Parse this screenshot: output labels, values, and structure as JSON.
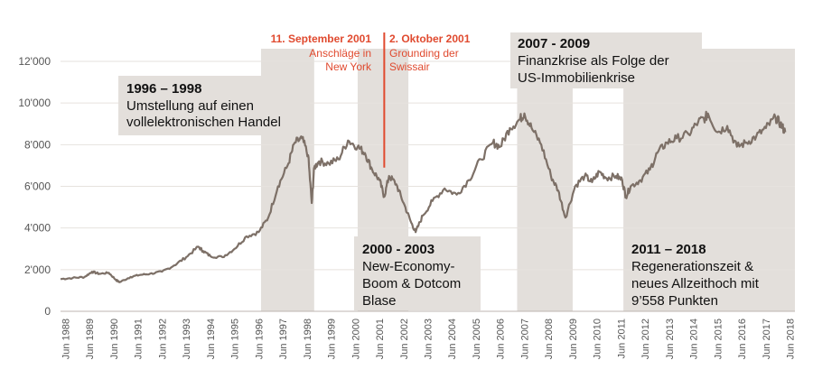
{
  "chart_data": {
    "type": "line",
    "y_tick_labels": [
      "0",
      "2'000",
      "4'000",
      "6'000",
      "8'000",
      "10'000",
      "12'000"
    ],
    "y_ticks": [
      0,
      2000,
      4000,
      6000,
      8000,
      10000,
      12000
    ],
    "ylim": [
      0,
      12000
    ],
    "x_tick_labels": [
      "Jun 1988",
      "Jun 1989",
      "Jun 1990",
      "Jun 1991",
      "Jun 1992",
      "Jun 1993",
      "Jun 1994",
      "Jun 1995",
      "Jun 1996",
      "Jun 1997",
      "Jun 1998",
      "Jun 1999",
      "Jun 2000",
      "Jun 2001",
      "Jun 2002",
      "Jun 2003",
      "Jun 2004",
      "Jun 2005",
      "Jun 2006",
      "Jun 2007",
      "Jun 2008",
      "Jun 2009",
      "Jun 2010",
      "Jun 2011",
      "Jun 2012",
      "Jun 2013",
      "Jun 2014",
      "Jun 2015",
      "Jun 2016",
      "Jun 2017",
      "Jun 2018"
    ],
    "x_ticks": [
      1988.5,
      1989.5,
      1990.5,
      1991.5,
      1992.5,
      1993.5,
      1994.5,
      1995.5,
      1996.5,
      1997.5,
      1998.5,
      1999.5,
      2000.5,
      2001.5,
      2002.5,
      2003.5,
      2004.5,
      2005.5,
      2006.5,
      2007.5,
      2008.5,
      2009.5,
      2010.5,
      2011.5,
      2012.5,
      2013.5,
      2014.5,
      2015.5,
      2016.5,
      2017.5,
      2018.5
    ],
    "xlim": [
      1988.3,
      2018.7
    ],
    "grid": true,
    "series": [
      {
        "color": "#7d7067",
        "x": [
          1988.3,
          1988.8,
          1989.3,
          1989.6,
          1989.9,
          1990.3,
          1990.6,
          1990.75,
          1991.2,
          1991.6,
          1992.0,
          1992.5,
          1993.0,
          1993.5,
          1994.0,
          1994.2,
          1994.5,
          1995.0,
          1995.5,
          1996.0,
          1996.5,
          1996.9,
          1997.3,
          1997.7,
          1998.0,
          1998.3,
          1998.55,
          1998.7,
          1998.8,
          1999.0,
          1999.4,
          1999.8,
          2000.2,
          2000.6,
          2000.9,
          2001.2,
          2001.5,
          2001.7,
          2001.9,
          2002.2,
          2002.5,
          2002.8,
          2003.0,
          2003.3,
          2003.7,
          2004.2,
          2004.7,
          2005.2,
          2005.7,
          2006.2,
          2006.5,
          2006.9,
          2007.3,
          2007.5,
          2007.8,
          2008.2,
          2008.6,
          2008.9,
          2009.2,
          2009.6,
          2010.0,
          2010.3,
          2010.6,
          2010.9,
          2011.3,
          2011.55,
          2011.7,
          2011.9,
          2012.3,
          2012.7,
          2013.0,
          2013.4,
          2013.8,
          2014.3,
          2014.7,
          2015.0,
          2015.1,
          2015.5,
          2015.9,
          2016.3,
          2016.7,
          2017.1,
          2017.5,
          2017.9,
          2018.1,
          2018.3
        ],
        "values": [
          1550,
          1600,
          1650,
          1900,
          1800,
          1850,
          1500,
          1400,
          1650,
          1750,
          1800,
          1900,
          2200,
          2600,
          3100,
          2900,
          2650,
          2600,
          3000,
          3600,
          3800,
          4500,
          6000,
          7000,
          8100,
          8300,
          7500,
          5200,
          6900,
          7200,
          7100,
          7300,
          8200,
          7900,
          7600,
          6800,
          6300,
          5500,
          6500,
          6100,
          5200,
          4300,
          3800,
          4600,
          5300,
          5900,
          5600,
          6300,
          7300,
          8100,
          7900,
          8800,
          9200,
          9500,
          8800,
          8000,
          6500,
          5800,
          4500,
          6000,
          6500,
          6200,
          6700,
          6400,
          6500,
          6300,
          5500,
          6000,
          6300,
          6800,
          7600,
          8100,
          8300,
          8500,
          9100,
          9300,
          9500,
          8600,
          8900,
          7900,
          8100,
          8400,
          8800,
          9300,
          9000,
          8600
        ]
      }
    ],
    "shaded_periods": [
      {
        "from": 1996.6,
        "to": 1998.8,
        "color": "#e3dfdb"
      },
      {
        "from": 2000.6,
        "to": 2002.7,
        "color": "#e3dfdb"
      },
      {
        "from": 2007.2,
        "to": 2009.5,
        "color": "#e3dfdb"
      },
      {
        "from": 2011.6,
        "to": 2018.7,
        "color": "#e3dfdb"
      }
    ],
    "event_line": {
      "x": 2001.7,
      "color": "#e04a2f"
    },
    "annotations": [
      {
        "title": "1996 – 1998",
        "lines": [
          "Umstellung auf einen",
          "vollelektronischen Handel"
        ]
      },
      {
        "title": "2000 - 2003",
        "lines": [
          "New-Economy-",
          "Boom & Dotcom",
          "Blase"
        ]
      },
      {
        "title": "2007 - 2009",
        "lines": [
          "Finanzkrise als Folge der",
          "US-Immobilienkrise"
        ]
      },
      {
        "title": "2011 – 2018",
        "lines": [
          "Regenerationszeit &",
          "neues Allzeithoch mit",
          "9’558 Punkten"
        ]
      }
    ],
    "red_annotations": [
      {
        "title": "11. September 2001",
        "lines": [
          "Anschläge in",
          "New York"
        ]
      },
      {
        "title": "2. Oktober 2001",
        "lines": [
          "Grounding der",
          "Swissair"
        ]
      }
    ]
  }
}
